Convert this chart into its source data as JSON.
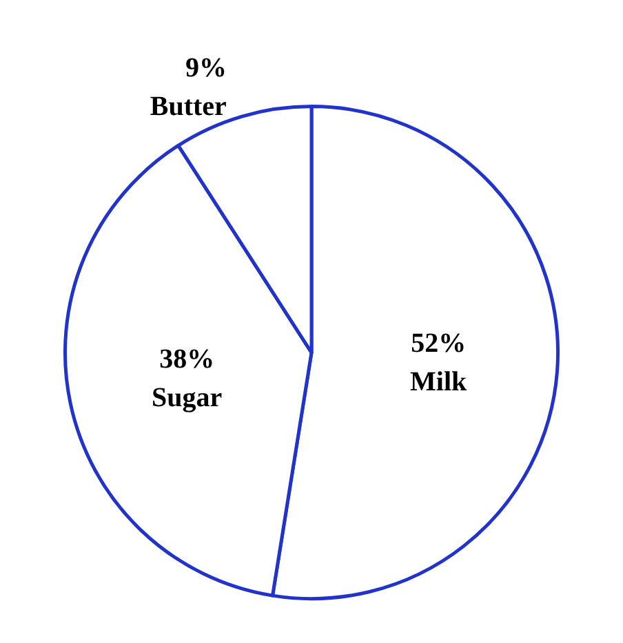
{
  "chart_data": {
    "type": "pie",
    "categories": [
      "Milk",
      "Sugar",
      "Butter"
    ],
    "values": [
      52,
      38,
      9
    ],
    "value_labels": [
      "52%",
      "38%",
      "9%"
    ],
    "colors": [
      "#ffffff",
      "#ffffff",
      "#ffffff"
    ],
    "legend": false
  }
}
